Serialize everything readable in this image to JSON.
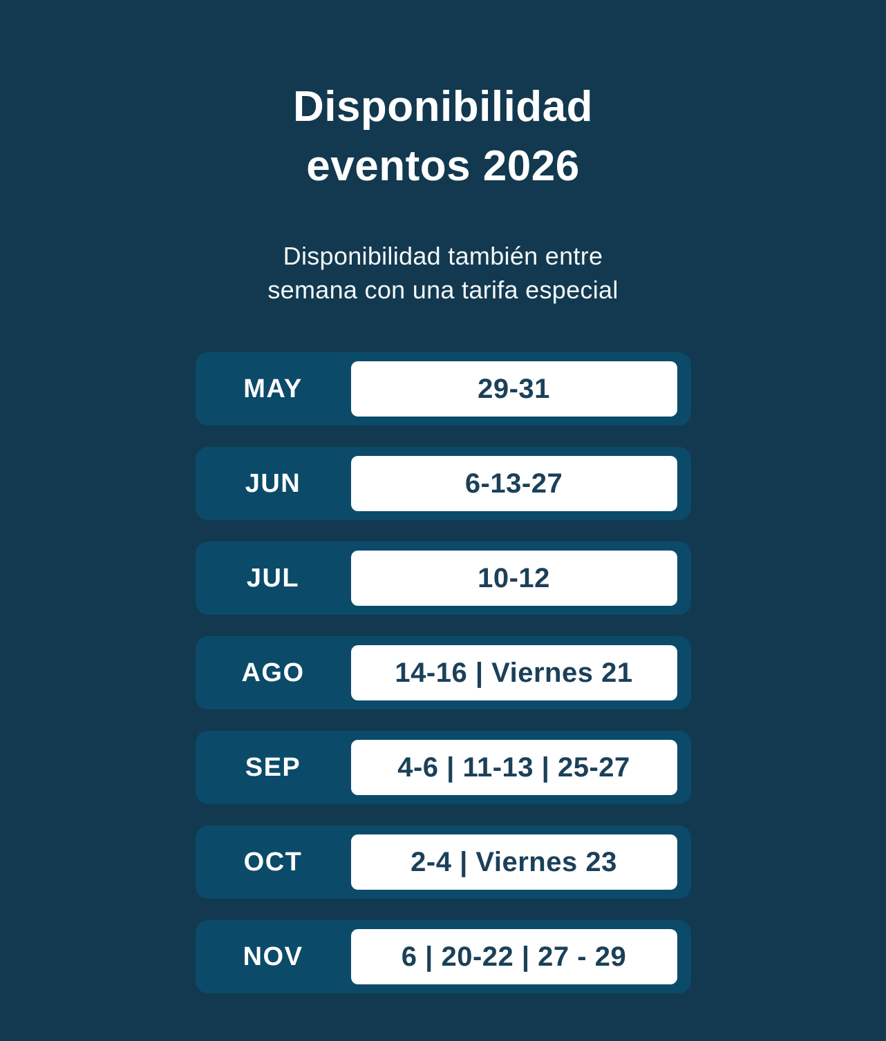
{
  "colors": {
    "page_background": "#12394F",
    "row_background": "#0B4B69",
    "date_box_background": "#FFFFFF",
    "date_text": "#1B4059",
    "heading_text": "#FFFFFF"
  },
  "header": {
    "title_line1": "Disponibilidad",
    "title_line2": "eventos 2026",
    "subtitle_line1": "Disponibilidad también entre",
    "subtitle_line2": "semana con una tarifa especial"
  },
  "availability": {
    "rows": [
      {
        "month": "MAY",
        "dates": "29-31"
      },
      {
        "month": "JUN",
        "dates": "6-13-27"
      },
      {
        "month": "JUL",
        "dates": "10-12"
      },
      {
        "month": "AGO",
        "dates": "14-16 | Viernes 21"
      },
      {
        "month": "SEP",
        "dates": "4-6 | 11-13 | 25-27"
      },
      {
        "month": "OCT",
        "dates": "2-4 | Viernes 23"
      },
      {
        "month": "NOV",
        "dates": "6 | 20-22 | 27 - 29"
      }
    ]
  }
}
